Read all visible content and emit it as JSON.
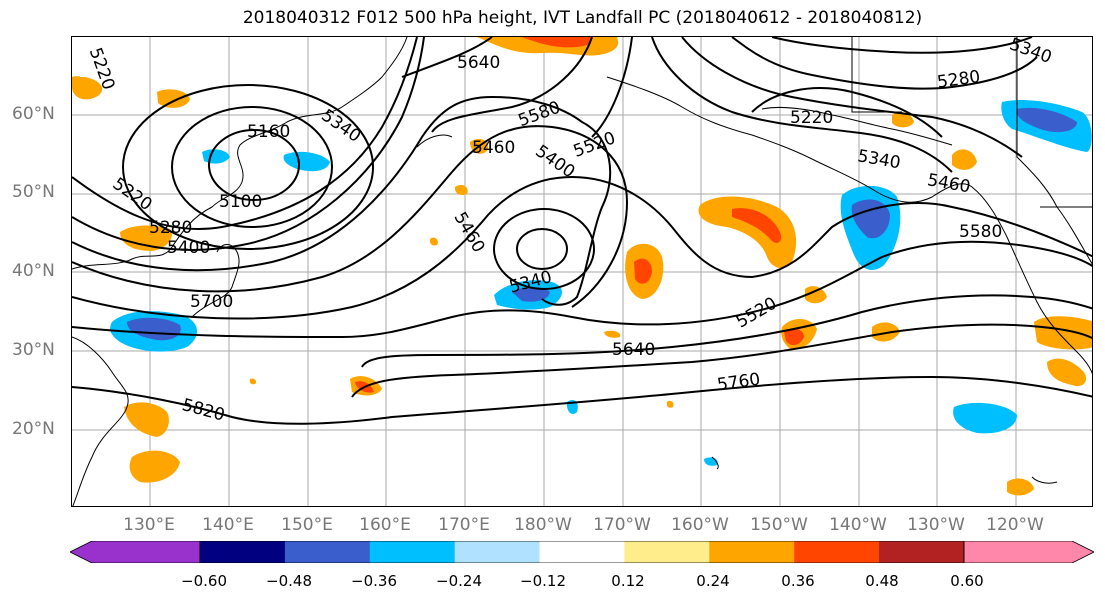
{
  "title": "2018040312 F012 500 hPa height, IVT Landfall PC (2018040612 - 2018040812)",
  "lat_labels": [
    "60°N",
    "50°N",
    "40°N",
    "30°N",
    "20°N"
  ],
  "lon_labels": [
    "130°E",
    "140°E",
    "150°E",
    "160°E",
    "170°E",
    "180°W",
    "170°W",
    "160°W",
    "150°W",
    "140°W",
    "130°W",
    "120°W"
  ],
  "contour_labels": [
    "5220",
    "5160",
    "5340",
    "5100",
    "5220",
    "5280",
    "5400",
    "5700",
    "5820",
    "5640",
    "5580",
    "5460",
    "5400",
    "5520",
    "5460",
    "5340",
    "5640",
    "5760",
    "5520",
    "5220",
    "5280",
    "5340",
    "5340",
    "5460",
    "5580"
  ],
  "colorbar": {
    "colors": [
      "#9932CC",
      "#000080",
      "#3A5FCD",
      "#00BFFF",
      "#B0E2FF",
      "#FFFFFF",
      "#FFEC8B",
      "#FFA500",
      "#FF4500",
      "#B22222",
      "#FF88AA"
    ],
    "ticks": [
      "−0.60",
      "−0.48",
      "−0.36",
      "−0.24",
      "−0.12",
      "0.12",
      "0.24",
      "0.36",
      "0.48",
      "0.60"
    ]
  }
}
